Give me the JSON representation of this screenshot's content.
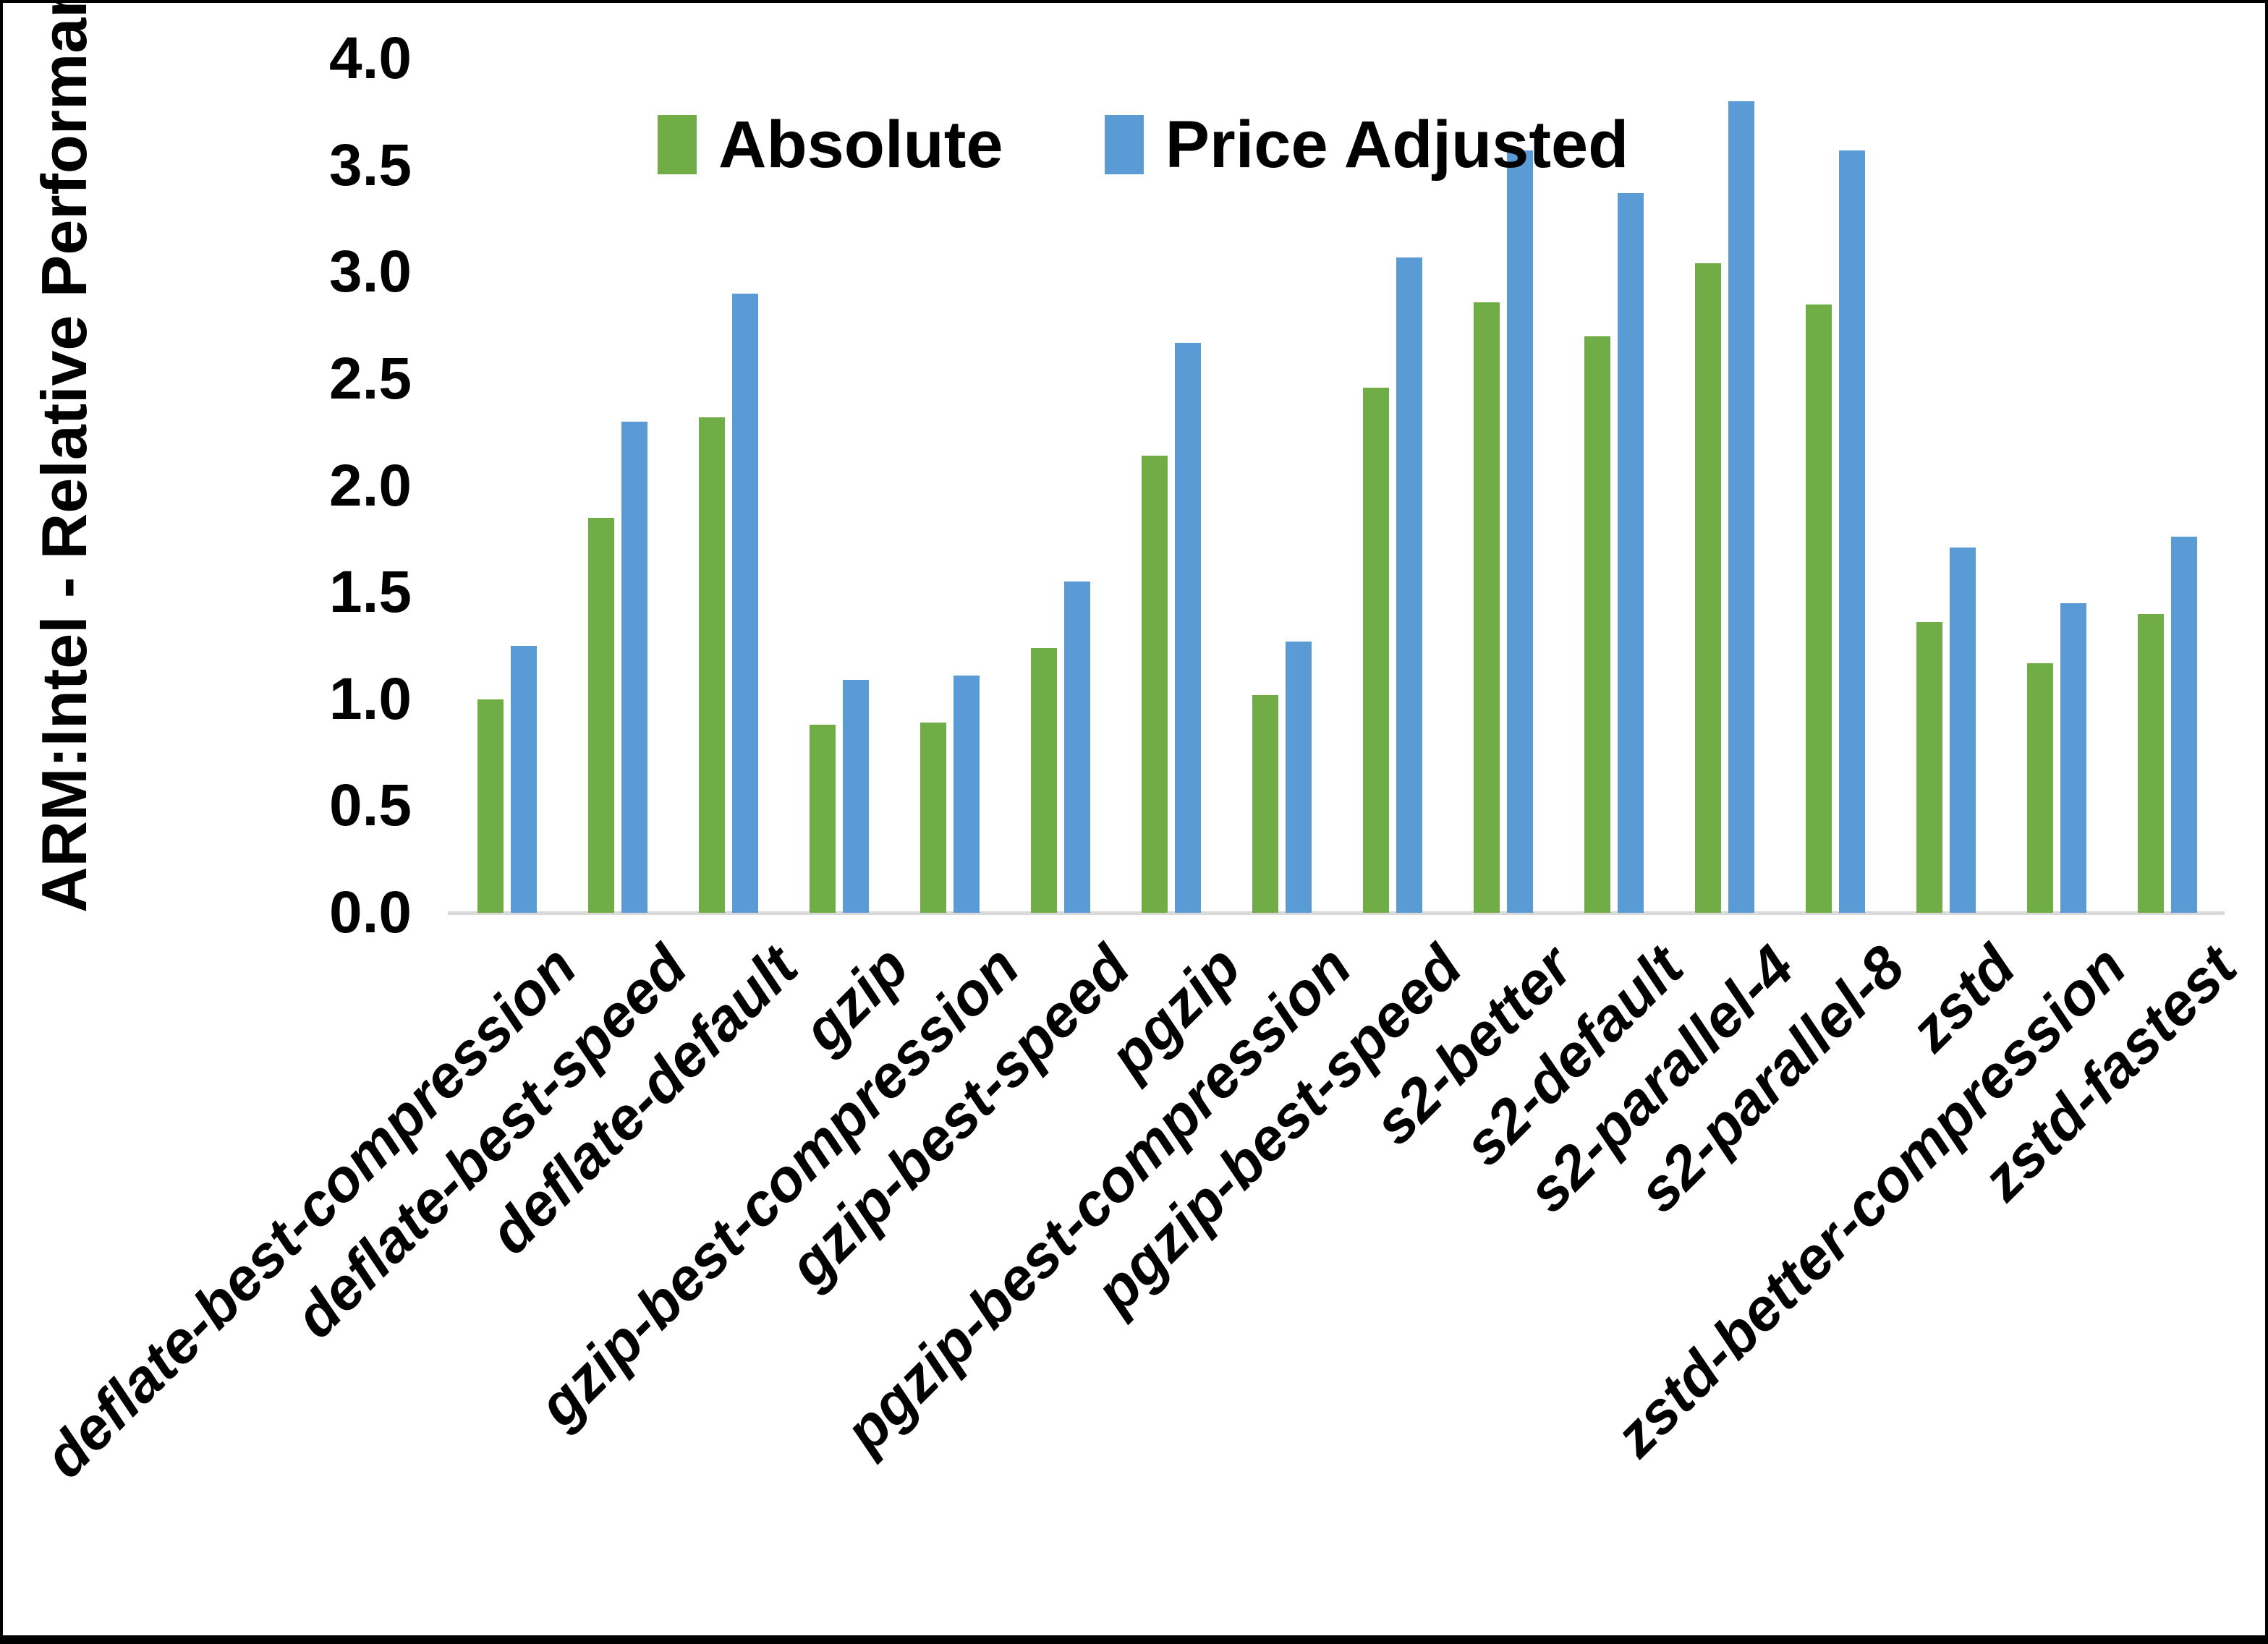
{
  "figure": {
    "y_axis_title": "ARM:Intel - Relative Performance"
  },
  "chart_data": {
    "type": "bar",
    "title": "",
    "xlabel": "",
    "ylabel": "ARM:Intel - Relative Performance",
    "ylim": [
      0,
      4.0
    ],
    "ytick_step": 0.5,
    "grid": false,
    "legend_position": "top-center",
    "background": "#ffffff",
    "axis_line_color": "#d9d9d9",
    "categories": [
      "deflate-best-compression",
      "deflate-best-speed",
      "deflate-default",
      "gzip",
      "gzip-best-compression",
      "gzip-best-speed",
      "pgzip",
      "pgzip-best-compression",
      "pgzip-best-speed",
      "s2-better",
      "s2-default",
      "s2-parallel-4",
      "s2-parallel-8",
      "zstd",
      "zstd-better-compression",
      "zstd-fastest"
    ],
    "series": [
      {
        "name": "Absolute",
        "color": "#70AD47",
        "values": [
          1.0,
          1.85,
          2.32,
          0.88,
          0.89,
          1.24,
          2.14,
          1.02,
          2.46,
          2.86,
          2.7,
          3.04,
          2.85,
          1.36,
          1.17,
          1.4
        ]
      },
      {
        "name": "Price Adjusted",
        "color": "#5B9BD5",
        "values": [
          1.25,
          2.3,
          2.9,
          1.09,
          1.11,
          1.55,
          2.67,
          1.27,
          3.07,
          3.57,
          3.37,
          3.8,
          3.57,
          1.71,
          1.45,
          1.76
        ]
      }
    ]
  }
}
